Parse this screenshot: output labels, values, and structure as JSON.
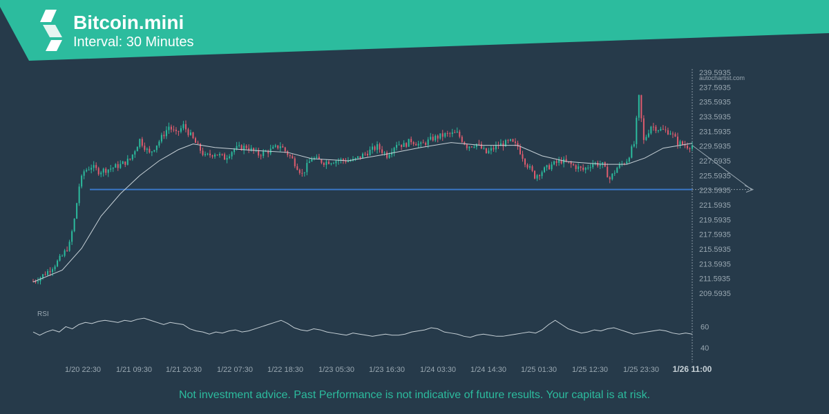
{
  "header": {
    "title": "Bitcoin.mini",
    "subtitle": "Interval: 30 Minutes"
  },
  "watermark": "autochartist.com",
  "disclaimer": "Not investment advice. Past Performance is not indicative of future results. Your capital is at risk.",
  "colors": {
    "banner": "#2cbc9e",
    "background": "#263a4a",
    "bullish": "#2cbc9e",
    "bearish": "#e05c6e",
    "support_line": "#3a78c9",
    "moving_average": "#c8d2d8",
    "rsi_line": "#c8d2d8",
    "axis_text": "#9aa8b2"
  },
  "chart_data": {
    "type": "candlestick",
    "y_ticks": [
      "239.5935",
      "237.5935",
      "235.5935",
      "233.5935",
      "231.5935",
      "229.5935",
      "227.5935",
      "225.5935",
      "223.5935",
      "221.5935",
      "219.5935",
      "217.5935",
      "215.5935",
      "213.5935",
      "211.5935",
      "209.5935"
    ],
    "ylim": [
      208.5,
      240.0
    ],
    "x_ticks": [
      "1/20 22:30",
      "1/21 09:30",
      "1/21 20:30",
      "1/22 07:30",
      "1/22 18:30",
      "1/23 05:30",
      "1/23 16:30",
      "1/24 03:30",
      "1/24 14:30",
      "1/25 01:30",
      "1/25 12:30",
      "1/25 23:30"
    ],
    "last_time_label": "1/26 11:00",
    "support_level": 223.3,
    "forecast_target": 223.3,
    "price_series": [
      {
        "t": 0,
        "close": 210.2
      },
      {
        "t": 6,
        "close": 210.8
      },
      {
        "t": 12,
        "close": 211.6
      },
      {
        "t": 18,
        "close": 212.6
      },
      {
        "t": 24,
        "close": 213.8
      },
      {
        "t": 30,
        "close": 215.5
      },
      {
        "t": 34,
        "close": 219.0
      },
      {
        "t": 38,
        "close": 223.8
      },
      {
        "t": 42,
        "close": 225.9
      },
      {
        "t": 48,
        "close": 226.6
      },
      {
        "t": 54,
        "close": 225.9
      },
      {
        "t": 62,
        "close": 226.2
      },
      {
        "t": 72,
        "close": 226.8
      },
      {
        "t": 80,
        "close": 227.6
      },
      {
        "t": 88,
        "close": 230.4
      },
      {
        "t": 96,
        "close": 228.4
      },
      {
        "t": 104,
        "close": 230.2
      },
      {
        "t": 112,
        "close": 232.3
      },
      {
        "t": 118,
        "close": 231.2
      },
      {
        "t": 124,
        "close": 232.4
      },
      {
        "t": 130,
        "close": 231.0
      },
      {
        "t": 136,
        "close": 229.4
      },
      {
        "t": 142,
        "close": 228.0
      },
      {
        "t": 150,
        "close": 228.5
      },
      {
        "t": 158,
        "close": 227.8
      },
      {
        "t": 166,
        "close": 229.1
      },
      {
        "t": 176,
        "close": 229.4
      },
      {
        "t": 186,
        "close": 228.3
      },
      {
        "t": 196,
        "close": 228.9
      },
      {
        "t": 204,
        "close": 229.6
      },
      {
        "t": 214,
        "close": 227.6
      },
      {
        "t": 222,
        "close": 225.5
      },
      {
        "t": 230,
        "close": 227.8
      },
      {
        "t": 240,
        "close": 227.2
      },
      {
        "t": 252,
        "close": 227.5
      },
      {
        "t": 264,
        "close": 227.4
      },
      {
        "t": 276,
        "close": 228.6
      },
      {
        "t": 284,
        "close": 229.4
      },
      {
        "t": 292,
        "close": 228.2
      },
      {
        "t": 300,
        "close": 229.9
      },
      {
        "t": 306,
        "close": 229.6
      },
      {
        "t": 312,
        "close": 230.3
      },
      {
        "t": 320,
        "close": 229.6
      },
      {
        "t": 330,
        "close": 230.6
      },
      {
        "t": 340,
        "close": 231.1
      },
      {
        "t": 350,
        "close": 231.3
      },
      {
        "t": 358,
        "close": 229.5
      },
      {
        "t": 366,
        "close": 229.8
      },
      {
        "t": 374,
        "close": 228.5
      },
      {
        "t": 384,
        "close": 229.6
      },
      {
        "t": 394,
        "close": 230.1
      },
      {
        "t": 400,
        "close": 229.4
      },
      {
        "t": 406,
        "close": 227.3
      },
      {
        "t": 414,
        "close": 225.2
      },
      {
        "t": 420,
        "close": 225.9
      },
      {
        "t": 428,
        "close": 226.8
      },
      {
        "t": 436,
        "close": 227.4
      },
      {
        "t": 446,
        "close": 226.7
      },
      {
        "t": 454,
        "close": 226.1
      },
      {
        "t": 462,
        "close": 227.1
      },
      {
        "t": 470,
        "close": 226.8
      },
      {
        "t": 476,
        "close": 224.8
      },
      {
        "t": 482,
        "close": 226.4
      },
      {
        "t": 490,
        "close": 227.5
      },
      {
        "t": 496,
        "close": 229.8
      },
      {
        "t": 500,
        "close": 236.4
      },
      {
        "t": 504,
        "close": 230.2
      },
      {
        "t": 510,
        "close": 232.4
      },
      {
        "t": 518,
        "close": 231.8
      },
      {
        "t": 526,
        "close": 231.5
      },
      {
        "t": 532,
        "close": 230.0
      },
      {
        "t": 540,
        "close": 229.5
      },
      {
        "t": 544,
        "close": 229.6
      }
    ],
    "moving_average": [
      {
        "t": 0,
        "value": 210.1
      },
      {
        "t": 24,
        "value": 211.8
      },
      {
        "t": 40,
        "value": 214.9
      },
      {
        "t": 56,
        "value": 219.5
      },
      {
        "t": 72,
        "value": 222.7
      },
      {
        "t": 88,
        "value": 225.3
      },
      {
        "t": 104,
        "value": 227.4
      },
      {
        "t": 120,
        "value": 229.0
      },
      {
        "t": 132,
        "value": 229.8
      },
      {
        "t": 150,
        "value": 229.3
      },
      {
        "t": 180,
        "value": 228.9
      },
      {
        "t": 210,
        "value": 228.6
      },
      {
        "t": 230,
        "value": 227.7
      },
      {
        "t": 260,
        "value": 227.4
      },
      {
        "t": 290,
        "value": 228.3
      },
      {
        "t": 320,
        "value": 229.3
      },
      {
        "t": 345,
        "value": 230.0
      },
      {
        "t": 370,
        "value": 229.6
      },
      {
        "t": 400,
        "value": 229.6
      },
      {
        "t": 420,
        "value": 228.1
      },
      {
        "t": 440,
        "value": 227.3
      },
      {
        "t": 470,
        "value": 226.9
      },
      {
        "t": 490,
        "value": 226.9
      },
      {
        "t": 505,
        "value": 227.8
      },
      {
        "t": 520,
        "value": 229.2
      },
      {
        "t": 544,
        "value": 229.9
      }
    ],
    "rsi": {
      "label": "RSI",
      "ticks": [
        "60",
        "40"
      ],
      "ylim": [
        33,
        72
      ],
      "values": [
        55,
        52,
        55,
        57,
        55,
        60,
        58,
        62,
        64,
        63,
        65,
        66,
        65,
        64,
        66,
        65,
        67,
        68,
        66,
        64,
        62,
        64,
        63,
        62,
        58,
        56,
        55,
        53,
        55,
        54,
        56,
        57,
        55,
        56,
        58,
        60,
        62,
        64,
        66,
        63,
        59,
        57,
        56,
        58,
        57,
        55,
        54,
        53,
        52,
        54,
        53,
        52,
        51,
        52,
        53,
        52,
        52,
        53,
        55,
        56,
        57,
        59,
        58,
        55,
        54,
        53,
        51,
        50,
        52,
        53,
        52,
        51,
        51,
        52,
        53,
        54,
        55,
        54,
        57,
        62,
        66,
        62,
        58,
        56,
        54,
        55,
        57,
        56,
        58,
        59,
        57,
        55,
        53,
        54,
        55,
        56,
        57,
        56,
        54,
        53,
        54,
        53
      ],
      "span_t": [
        0,
        544
      ]
    },
    "total_bars": 544
  }
}
